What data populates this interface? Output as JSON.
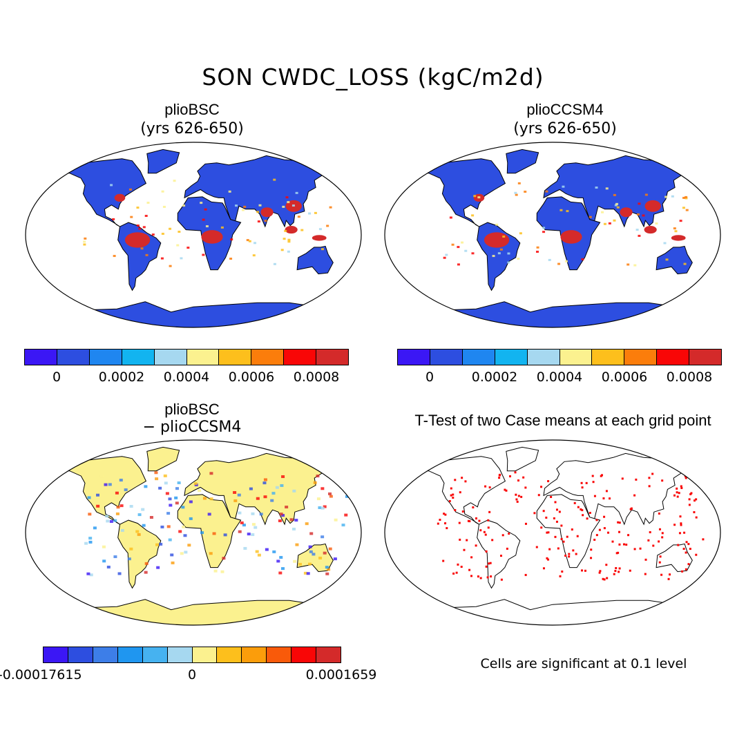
{
  "figure": {
    "title": "SON CWDC_LOSS (kgC/m2d)",
    "significance_note": "Cells are significant at 0.1 level"
  },
  "panels": [
    {
      "title": "plioBSC",
      "subtitle": "(yrs 626-650)"
    },
    {
      "title": "plioCCSM4",
      "subtitle": "(yrs 626-650)"
    },
    {
      "title": "plioBSC",
      "subtitle": "− plioCCSM4"
    },
    {
      "title": "T-Test of two Case means at each grid point",
      "subtitle": ""
    }
  ],
  "colorbars": {
    "absolute": {
      "colors": [
        "#3b17f5",
        "#2d4ee0",
        "#1f86f0",
        "#12b4f0",
        "#a6d8f0",
        "#fbf18f",
        "#fdbf1c",
        "#fb7d0b",
        "#f90606",
        "#d42a2a"
      ],
      "tick_labels": [
        "0",
        "0.0002",
        "0.0004",
        "0.0006",
        "0.0008"
      ]
    },
    "difference": {
      "colors": [
        "#3b17f5",
        "#2d4ee0",
        "#3d7ee8",
        "#1f96f0",
        "#46b2f0",
        "#a6d8f0",
        "#fbf18f",
        "#fdbf1c",
        "#fb9d0b",
        "#f95a0a",
        "#f90606",
        "#d42a2a"
      ],
      "tick_labels": [
        "-0.00017615",
        "0",
        "0.0001659"
      ]
    }
  },
  "map_colors": {
    "land_low": "#2d4ee0",
    "land_high": "#d42a2a",
    "diff_neutral": "#fbf18f",
    "significant": "#f90606",
    "coast": "#000000"
  }
}
